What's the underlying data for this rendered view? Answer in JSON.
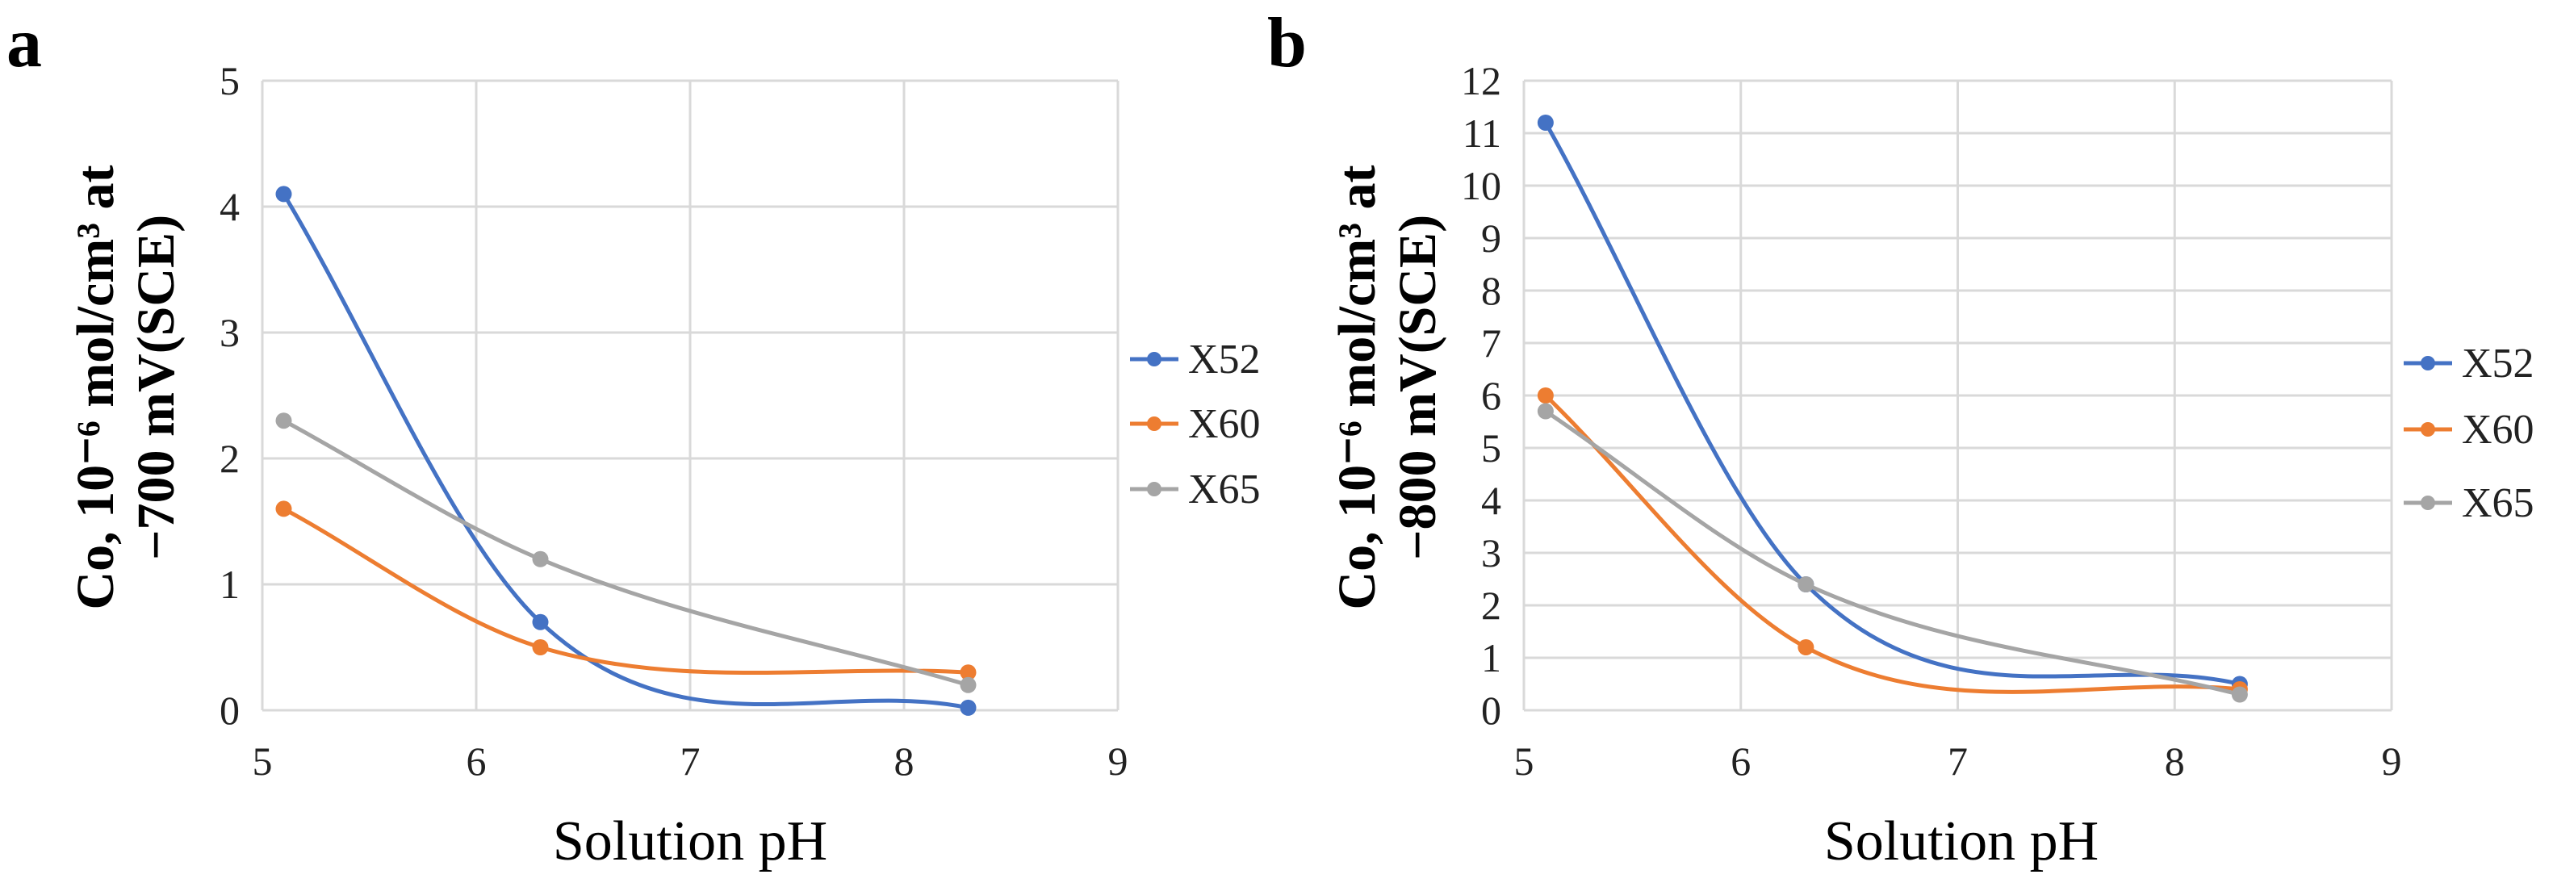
{
  "chart_data": [
    {
      "panel": "a",
      "type": "line",
      "smooth": true,
      "title": "",
      "xlabel": "Solution pH",
      "ylabel_line1": "Co, 10⁻⁶ mol/cm³ at",
      "ylabel_line2": "−700 mV(SCE)",
      "xlim": [
        5,
        9
      ],
      "ylim": [
        0,
        5
      ],
      "xticks": [
        5,
        6,
        7,
        8,
        9
      ],
      "yticks": [
        0,
        1,
        2,
        3,
        4,
        5
      ],
      "grid": true,
      "legend_position": "right",
      "x": [
        5.1,
        6.3,
        8.3
      ],
      "series": [
        {
          "name": "X52",
          "color": "#4472C4",
          "values": [
            4.1,
            0.7,
            0.02
          ]
        },
        {
          "name": "X60",
          "color": "#ED7D31",
          "values": [
            1.6,
            0.5,
            0.3
          ]
        },
        {
          "name": "X65",
          "color": "#A5A5A5",
          "values": [
            2.3,
            1.2,
            0.2
          ]
        }
      ]
    },
    {
      "panel": "b",
      "type": "line",
      "smooth": true,
      "title": "",
      "xlabel": "Solution pH",
      "ylabel_line1": "Co, 10⁻⁶ mol/cm³ at",
      "ylabel_line2": "−800 mV(SCE)",
      "xlim": [
        5,
        9
      ],
      "ylim": [
        0,
        12
      ],
      "xticks": [
        5,
        6,
        7,
        8,
        9
      ],
      "yticks": [
        0,
        1,
        2,
        3,
        4,
        5,
        6,
        7,
        8,
        9,
        10,
        11,
        12
      ],
      "grid": true,
      "legend_position": "right",
      "x": [
        5.1,
        6.3,
        8.3
      ],
      "series": [
        {
          "name": "X52",
          "color": "#4472C4",
          "values": [
            11.2,
            2.4,
            0.5
          ]
        },
        {
          "name": "X60",
          "color": "#ED7D31",
          "values": [
            6.0,
            1.2,
            0.4
          ]
        },
        {
          "name": "X65",
          "color": "#A5A5A5",
          "values": [
            5.7,
            2.4,
            0.3
          ]
        }
      ]
    }
  ]
}
